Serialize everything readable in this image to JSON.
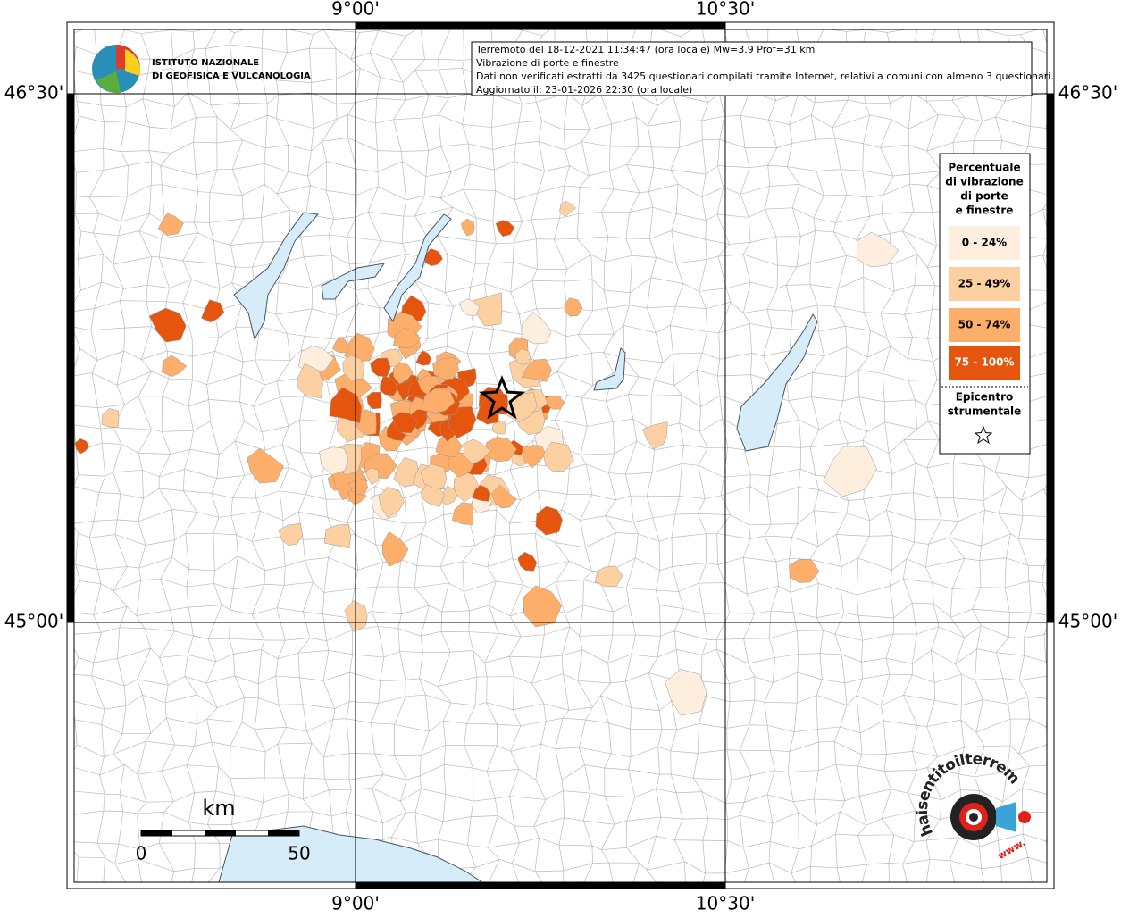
{
  "map": {
    "lon_labels": [
      "9°00'",
      "10°30'"
    ],
    "lat_labels": [
      "46°30'",
      "45°00'"
    ],
    "info": [
      "Terremoto del 18-12-2021 11:34:47 (ora locale) Mw=3.9 Prof=31 km",
      "Vibrazione di porte e finestre",
      "Dati non verificati estratti da 3425 questionari compilati tramite Internet, relativi a comuni con almeno 3 questionari.",
      "Aggiornato il: 23-01-2026 22:30 (ora locale)"
    ],
    "institute": [
      "ISTITUTO NAZIONALE",
      "DI GEOFISICA E VULCANOLOGIA"
    ],
    "legend": {
      "title": [
        "Percentuale",
        "di vibrazione",
        "di porte",
        "e finestre"
      ],
      "items": [
        {
          "label": "0 - 24%",
          "color": "#fdeedd"
        },
        {
          "label": "25 - 49%",
          "color": "#fdd0a2"
        },
        {
          "label": "50 - 74%",
          "color": "#fdae6b"
        },
        {
          "label": "75 - 100%",
          "color": "#e6550d"
        }
      ],
      "epicentre": [
        "Epicentro",
        "strumentale"
      ]
    },
    "scale": {
      "unit": "km",
      "start": "0",
      "end": "50"
    },
    "site_logo": {
      "name": "haisentitoilterremoto.it",
      "prefix": "www."
    }
  }
}
